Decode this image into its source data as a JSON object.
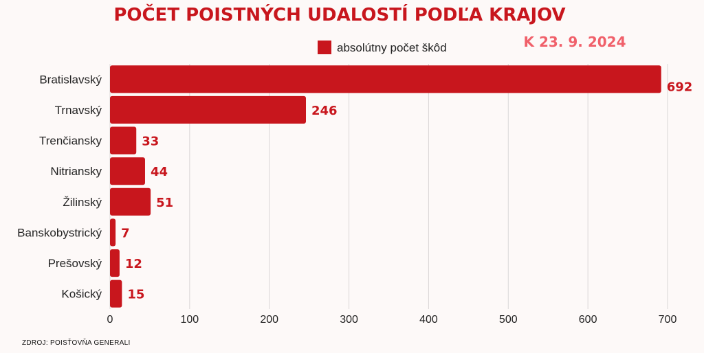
{
  "chart_data": {
    "type": "bar",
    "orientation": "horizontal",
    "title": "POČET POISTNÝCH UDALOSTÍ PODĽA KRAJOV",
    "date_note": "K 23. 9. 2024",
    "categories": [
      "Bratislavský",
      "Trnavský",
      "Trenčiansky",
      "Nitriansky",
      "Žilinský",
      "Banskobystrický",
      "Prešovský",
      "Košický"
    ],
    "series": [
      {
        "name": "absolútny počet škôd",
        "values": [
          692,
          246,
          33,
          44,
          51,
          7,
          12,
          15
        ]
      }
    ],
    "xlim": [
      0,
      700
    ],
    "xticks": [
      0,
      100,
      200,
      300,
      400,
      500,
      600,
      700
    ],
    "grid": true,
    "legend_position": "top-center",
    "bar_color": "#c8161d",
    "source": "ZDROJ: POISŤOVŇA GENERALI"
  }
}
